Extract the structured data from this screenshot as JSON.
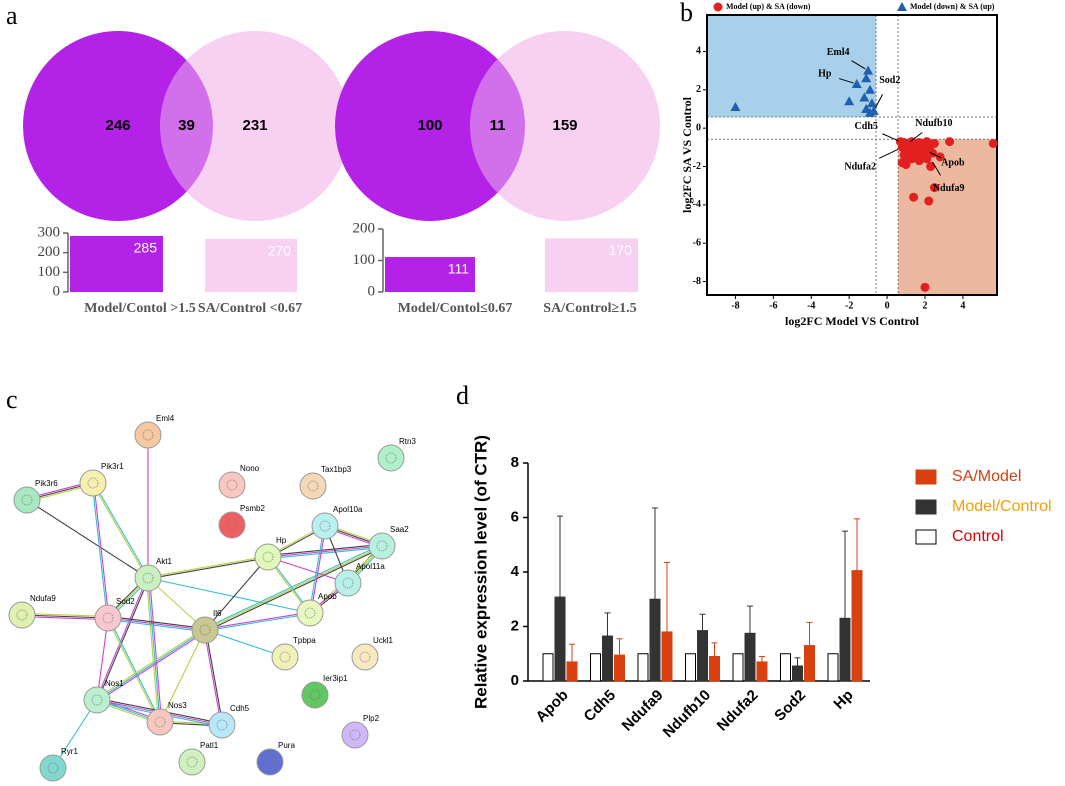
{
  "chart_data": [
    {
      "type": "venn",
      "panel": "a",
      "values": [
        246,
        39,
        231
      ],
      "colors": [
        "#b322e6",
        "#f8d0f2"
      ]
    },
    {
      "type": "bar",
      "categories": [
        "Model/Contol >1.5",
        "SA/Control <0.67"
      ],
      "values": [
        285,
        270
      ],
      "colors": [
        "#b322e6",
        "#f8d0f2"
      ],
      "ylim": [
        0,
        300
      ],
      "yticks": [
        0,
        100,
        200,
        300
      ]
    },
    {
      "type": "venn",
      "values": [
        100,
        11,
        159
      ],
      "colors": [
        "#b322e6",
        "#f8d0f2"
      ]
    },
    {
      "type": "bar",
      "categories": [
        "Model/Contol≤0.67",
        "SA/Control≥1.5"
      ],
      "values": [
        111,
        170
      ],
      "colors": [
        "#b322e6",
        "#f8d0f2"
      ],
      "ylim": [
        0,
        200
      ],
      "yticks": [
        0,
        100,
        200
      ]
    },
    {
      "type": "scatter",
      "panel": "b",
      "xlabel": "log2FC Model VS Control",
      "ylabel": "log2FC SA VS Control",
      "xlim": [
        -9.5,
        5.8
      ],
      "ylim": [
        -8.7,
        5.9
      ],
      "xticks": [
        -8,
        -6,
        -4,
        -2,
        0,
        2,
        4
      ],
      "yticks": [
        -8,
        -6,
        -4,
        -2,
        0,
        2,
        4
      ],
      "thresholds": [
        -0.58,
        0.58
      ],
      "region_colors": [
        "#a8d0ea",
        "#ecb9a0"
      ],
      "series": [
        {
          "name": "Model (up) & SA (down)",
          "color": "#e32020",
          "marker": "circle",
          "x": [
            0.7,
            0.9,
            1.1,
            1.3,
            1.5,
            1.7,
            1.9,
            2.1,
            2.3,
            2.5,
            0.8,
            1.0,
            1.2,
            1.4,
            1.6,
            1.8,
            2.0,
            2.2,
            0.9,
            1.1,
            1.3,
            1.5,
            1.7,
            1.9,
            2.1,
            0.8,
            1.0,
            2.4,
            3.3,
            5.6,
            2.5,
            1.4,
            2.2,
            2.0,
            2.8,
            2.3
          ],
          "y": [
            -0.7,
            -0.75,
            -0.8,
            -0.7,
            -0.9,
            -0.75,
            -0.8,
            -0.7,
            -0.9,
            -0.8,
            -1.0,
            -1.1,
            -1.2,
            -1.0,
            -1.1,
            -1.3,
            -1.2,
            -1.0,
            -1.4,
            -1.5,
            -1.6,
            -1.4,
            -1.7,
            -1.5,
            -1.6,
            -1.8,
            -1.9,
            -1.3,
            -0.7,
            -0.8,
            -3.1,
            -3.6,
            -3.8,
            -8.3,
            -1.5,
            -2.0
          ]
        },
        {
          "name": "Model (down) & SA (up)",
          "color": "#2060b0",
          "marker": "triangle",
          "x": [
            -8,
            -1.0,
            -1.1,
            -1.6,
            -0.9,
            -2.0,
            -1.2,
            -0.8,
            -1.1,
            -0.7,
            -0.9
          ],
          "y": [
            1.1,
            3.0,
            2.6,
            2.3,
            2.0,
            1.4,
            1.6,
            1.3,
            1.0,
            0.9,
            0.8
          ]
        }
      ],
      "annotations": [
        {
          "text": "Eml4",
          "x": -1.0,
          "y": 3.0
        },
        {
          "text": "Hp",
          "x": -1.6,
          "y": 2.3
        },
        {
          "text": "Sod2",
          "x": -0.7,
          "y": 0.9
        },
        {
          "text": "Cdh5",
          "x": 0.8,
          "y": -0.75
        },
        {
          "text": "Ndufb10",
          "x": 1.1,
          "y": -0.8
        },
        {
          "text": "Ndufa2",
          "x": 0.8,
          "y": -1.0
        },
        {
          "text": "Apob",
          "x": 2.1,
          "y": -1.2
        },
        {
          "text": "Ndufa9",
          "x": 2.3,
          "y": -1.6
        }
      ]
    },
    {
      "type": "network",
      "panel": "c",
      "edge_colors": [
        "#d040d0",
        "#30c0d0",
        "#b8d040",
        "#404040"
      ],
      "nodes": [
        {
          "label": "Eml4",
          "color": "#f5c8a0"
        },
        {
          "label": "Pik3r1",
          "color": "#f5f0b0"
        },
        {
          "label": "Pik3r6",
          "color": "#a8e8c0"
        },
        {
          "label": "Nono",
          "color": "#f8c8c0"
        },
        {
          "label": "Tax1bp3",
          "color": "#f5d8b8"
        },
        {
          "label": "Rtn3",
          "color": "#b0f0c8"
        },
        {
          "label": "Psmb2",
          "color": "#f06060"
        },
        {
          "label": "Apol10a",
          "color": "#b8f0f0"
        },
        {
          "label": "Hp",
          "color": "#e0f8b8"
        },
        {
          "label": "Saa2",
          "color": "#b8f0e0"
        },
        {
          "label": "Akt1",
          "color": "#c8f0c0"
        },
        {
          "label": "Apol11a",
          "color": "#b8f0e8"
        },
        {
          "label": "Apob",
          "color": "#e8f8c0"
        },
        {
          "label": "Ndufa9",
          "color": "#e0f0b0"
        },
        {
          "label": "Sod2",
          "color": "#f8c8d0"
        },
        {
          "label": "Il6",
          "color": "#c8c890"
        },
        {
          "label": "Tpbpa",
          "color": "#f0f0b8"
        },
        {
          "label": "Uckl1",
          "color": "#f8e8c0"
        },
        {
          "label": "Ier3ip1",
          "color": "#60c860"
        },
        {
          "label": "Nos1",
          "color": "#b8f0d0"
        },
        {
          "label": "Nos3",
          "color": "#f8c8c0"
        },
        {
          "label": "Cdh5",
          "color": "#b8e8f8"
        },
        {
          "label": "Plp2",
          "color": "#d0b8f8"
        },
        {
          "label": "Patl1",
          "color": "#d0f0c0"
        },
        {
          "label": "Pura",
          "color": "#6070d0"
        },
        {
          "label": "Ryr1",
          "color": "#80d8d0"
        }
      ],
      "edges": [
        [
          0,
          10
        ],
        [
          1,
          10
        ],
        [
          1,
          2
        ],
        [
          2,
          10
        ],
        [
          1,
          14
        ],
        [
          10,
          14
        ],
        [
          10,
          15
        ],
        [
          10,
          19
        ],
        [
          10,
          20
        ],
        [
          10,
          12
        ],
        [
          10,
          8
        ],
        [
          14,
          15
        ],
        [
          14,
          19
        ],
        [
          14,
          20
        ],
        [
          13,
          14
        ],
        [
          15,
          8
        ],
        [
          15,
          12
        ],
        [
          15,
          9
        ],
        [
          15,
          20
        ],
        [
          15,
          21
        ],
        [
          15,
          19
        ],
        [
          15,
          16
        ],
        [
          8,
          7
        ],
        [
          8,
          9
        ],
        [
          8,
          11
        ],
        [
          8,
          12
        ],
        [
          7,
          9
        ],
        [
          7,
          11
        ],
        [
          7,
          12
        ],
        [
          9,
          11
        ],
        [
          9,
          12
        ],
        [
          11,
          12
        ],
        [
          19,
          20
        ],
        [
          19,
          25
        ],
        [
          20,
          21
        ],
        [
          19,
          21
        ]
      ]
    },
    {
      "type": "grouped_bar",
      "panel": "d",
      "ylabel": "Relative expression level (of CTR)",
      "categories": [
        "Apob",
        "Cdh5",
        "Ndufa9",
        "Ndufb10",
        "Ndufa2",
        "Sod2",
        "Hp"
      ],
      "ylim": [
        0,
        8
      ],
      "yticks": [
        0,
        2,
        4,
        6,
        8
      ],
      "series": [
        {
          "name": "SA/Model",
          "color": "#d84010",
          "label_color": "#d84010",
          "values": [
            0.7,
            0.95,
            1.8,
            0.9,
            0.7,
            1.3,
            4.05
          ],
          "errors": [
            0.65,
            0.6,
            2.55,
            0.5,
            0.2,
            0.85,
            1.9
          ]
        },
        {
          "name": "Model/Control",
          "color": "#333333",
          "label_color": "#f5a000",
          "values": [
            3.08,
            1.65,
            3.0,
            1.85,
            1.75,
            0.55,
            2.3
          ],
          "errors": [
            2.97,
            0.85,
            3.35,
            0.6,
            1.0,
            0.3,
            3.2
          ]
        },
        {
          "name": "Control",
          "color": "#ffffff",
          "label_color": "#e00000",
          "values": [
            1,
            1,
            1,
            1,
            1,
            1,
            1
          ]
        }
      ]
    }
  ]
}
